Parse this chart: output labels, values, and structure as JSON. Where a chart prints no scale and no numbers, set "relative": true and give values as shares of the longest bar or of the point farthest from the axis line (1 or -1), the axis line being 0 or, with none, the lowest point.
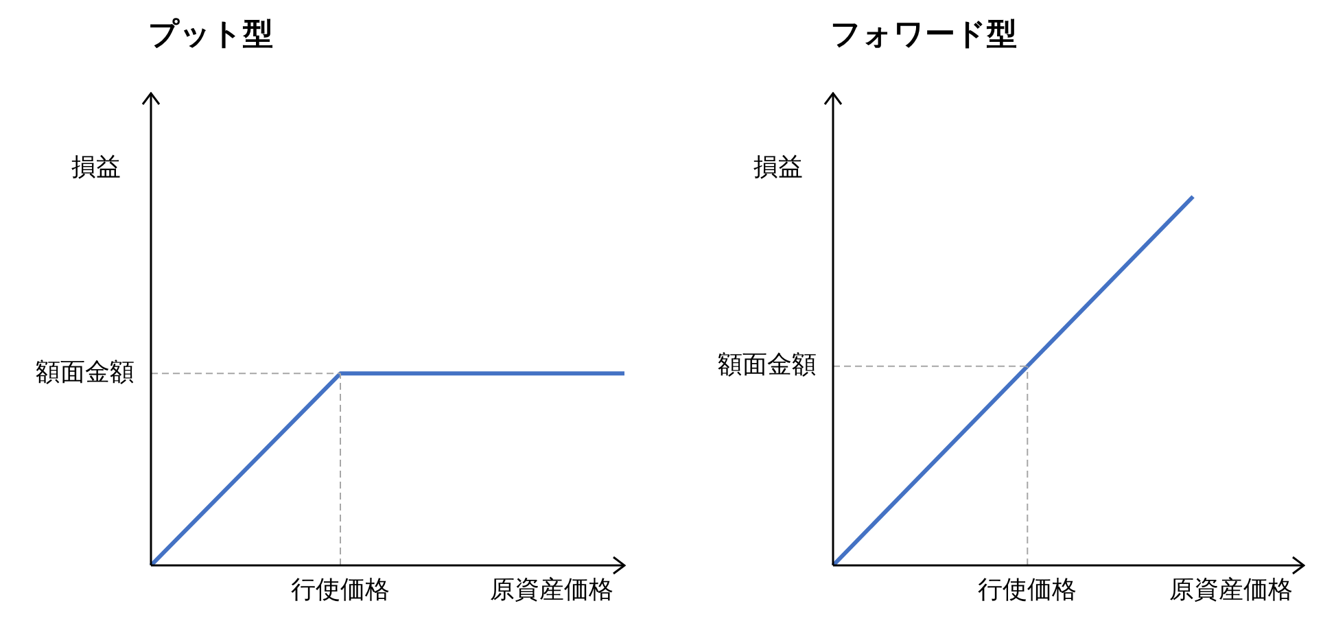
{
  "chart_data": [
    {
      "type": "line",
      "title": "プット型",
      "ylabel": "損益",
      "xlabel": "原資産価格",
      "relative": true,
      "marker": "none",
      "legend": false,
      "categories": [
        null,
        null,
        null,
        null,
        null,
        null
      ],
      "series": [
        {
          "color": "#4472c4",
          "values": [
            0,
            null,
            1,
            null,
            null,
            1
          ]
        }
      ],
      "annotations": [
        "行使価格"
      ],
      "ref_lines": [
        {
          "axis": "y",
          "value": 1,
          "label": "額面金額",
          "color": "#a6a6a6",
          "line_style": "dashed"
        }
      ]
    },
    {
      "type": "line",
      "title": "フォワード型",
      "ylabel": "損益",
      "xlabel": "原資産価格",
      "relative": true,
      "marker": "none",
      "legend": false,
      "categories": [
        null,
        null,
        null,
        null,
        null,
        null,
        null,
        null,
        null,
        null,
        null,
        null,
        null,
        null,
        null,
        null,
        null,
        null
      ],
      "series": [
        {
          "color": "#4472c4",
          "values": [
            0,
            null,
            null,
            null,
            null,
            null,
            null,
            null,
            null,
            null,
            null,
            null,
            null,
            1,
            null,
            null,
            null,
            null
          ]
        }
      ],
      "annotations": [
        "行使価格"
      ],
      "ref_lines": [
        {
          "axis": "y",
          "value": 0.54,
          "label": "額面金額",
          "color": "#a6a6a6",
          "line_style": "dashed"
        }
      ]
    }
  ]
}
